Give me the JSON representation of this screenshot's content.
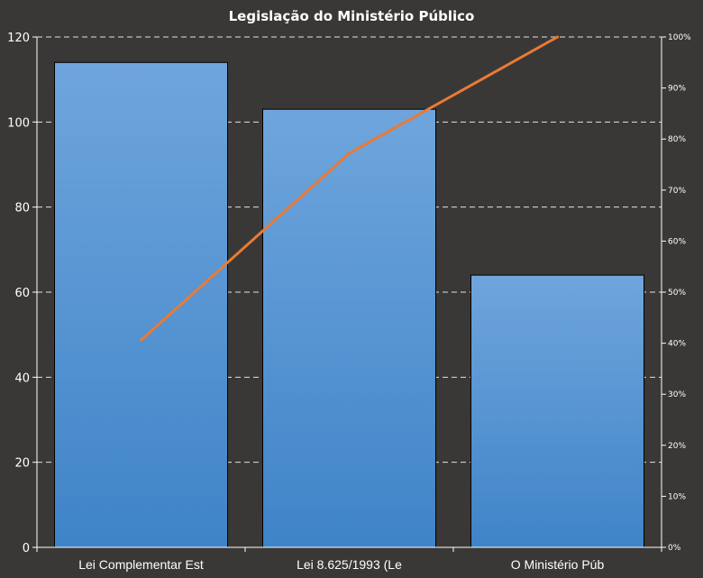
{
  "chart_data": {
    "type": "bar",
    "title": "Legislação do Ministério  Público",
    "categories": [
      "Lei Complementar  Est",
      "Lei 8.625/1993 (Le",
      "O Ministério Púb"
    ],
    "values": [
      114,
      103,
      64
    ],
    "ylim": [
      0,
      120
    ],
    "yticks": [
      "0",
      "20",
      "40",
      "60",
      "80",
      "100",
      "120"
    ],
    "secondary_axis": {
      "type": "line",
      "ylim": [
        0,
        100
      ],
      "values": [
        40.6,
        77.2,
        100
      ],
      "ticks": [
        "0%",
        "10%",
        "20%",
        "30%",
        "40%",
        "50%",
        "60%",
        "70%",
        "80%",
        "90%",
        "100%"
      ]
    },
    "grid": true,
    "legend": "none",
    "colors": {
      "background": "#3a3836",
      "bar_top": "#6fa5dc",
      "bar_bottom": "#3f84c8",
      "bar_border": "#000000",
      "line": "#ea7a34",
      "grid": "#ffffff",
      "text": "#ffffff"
    }
  }
}
